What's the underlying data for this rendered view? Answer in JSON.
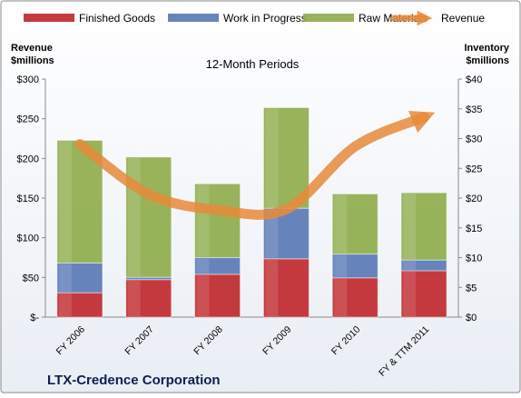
{
  "chart_data": {
    "type": "bar",
    "title": "12-Month Periods",
    "company": "LTX-Credence Corporation",
    "left_axis_label": [
      "Revenue",
      "$millions"
    ],
    "right_axis_label": [
      "Inventory",
      "$millions"
    ],
    "categories": [
      "FY 2006",
      "FY 2007",
      "FY 2008",
      "FY 2009",
      "FY 2010",
      "FY & TTM 2011"
    ],
    "stacked": true,
    "series": [
      {
        "name": "Finished Goods",
        "axis": "right",
        "color": "#c0292e",
        "values": [
          4.1,
          6.3,
          7.2,
          9.8,
          6.6,
          7.8
        ]
      },
      {
        "name": "Work in Progress",
        "axis": "right",
        "color": "#5a7ab5",
        "values": [
          5.0,
          0.4,
          2.8,
          8.5,
          4.0,
          1.8
        ]
      },
      {
        "name": "Raw Materials",
        "axis": "right",
        "color": "#8fac4c",
        "values": [
          20.6,
          20.2,
          12.4,
          16.9,
          10.1,
          11.3
        ]
      }
    ],
    "line_series": {
      "name": "Revenue",
      "axis": "left",
      "color": "#e8893a",
      "values": [
        218,
        155,
        135,
        136,
        215,
        252
      ]
    },
    "left_axis": {
      "min": 0,
      "max": 300,
      "ticks": [
        0,
        50,
        100,
        150,
        200,
        250,
        300
      ],
      "tick_labels": [
        "$-",
        "$50",
        "$100",
        "$150",
        "$200",
        "$250",
        "$300"
      ]
    },
    "right_axis": {
      "min": 0,
      "max": 40,
      "ticks": [
        0,
        5,
        10,
        15,
        20,
        25,
        30,
        35,
        40
      ],
      "tick_labels": [
        "$0",
        "$5",
        "$10",
        "$15",
        "$20",
        "$25",
        "$30",
        "$35",
        "$40"
      ]
    },
    "legend_position": "top",
    "grid": false
  }
}
